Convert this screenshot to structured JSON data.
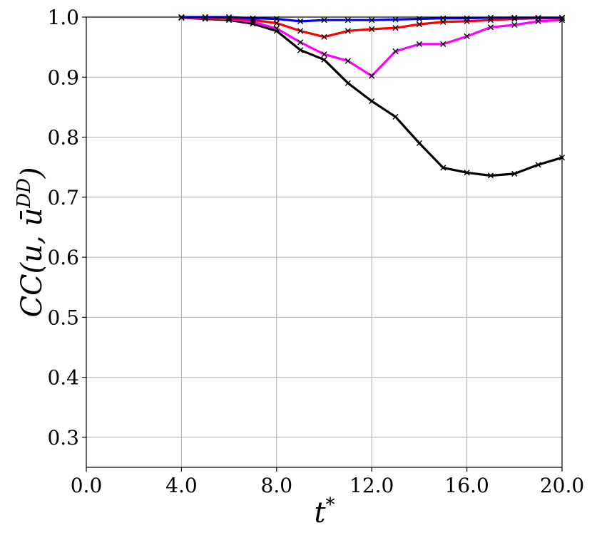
{
  "chart_data": {
    "type": "line",
    "xlabel": "t*",
    "ylabel": "CC(u, ū^DD)",
    "xlim": [
      0,
      20
    ],
    "ylim": [
      0.25,
      1.0
    ],
    "xticks": [
      "0.0",
      "4.0",
      "8.0",
      "12.0",
      "16.0",
      "20.0"
    ],
    "yticks": [
      "0.3",
      "0.4",
      "0.5",
      "0.6",
      "0.7",
      "0.8",
      "0.9",
      "1.0"
    ],
    "grid": true,
    "marker": "x",
    "x": [
      4,
      5,
      6,
      7,
      8,
      9,
      10,
      11,
      12,
      13,
      14,
      15,
      16,
      17,
      18,
      19,
      20
    ],
    "series": [
      {
        "color": "#000000",
        "values": [
          0.999,
          0.997,
          0.995,
          0.989,
          0.977,
          0.945,
          0.929,
          0.89,
          0.86,
          0.834,
          0.79,
          0.749,
          0.741,
          0.736,
          0.739,
          0.754,
          0.766
        ]
      },
      {
        "color": "#ff00ff",
        "values": [
          0.999,
          0.998,
          0.997,
          0.992,
          0.981,
          0.958,
          0.938,
          0.927,
          0.902,
          0.943,
          0.955,
          0.955,
          0.968,
          0.983,
          0.987,
          0.993,
          0.995
        ]
      },
      {
        "color": "#ff0000",
        "values": [
          0.999,
          0.999,
          0.998,
          0.995,
          0.99,
          0.977,
          0.967,
          0.977,
          0.98,
          0.982,
          0.988,
          0.992,
          0.993,
          0.995,
          0.997,
          0.998,
          0.998
        ]
      },
      {
        "color": "#0000ff",
        "values": [
          1.0,
          1.0,
          1.0,
          0.998,
          0.997,
          0.993,
          0.995,
          0.995,
          0.995,
          0.996,
          0.997,
          0.998,
          0.998,
          0.999,
          0.999,
          0.999,
          0.999
        ]
      }
    ]
  }
}
